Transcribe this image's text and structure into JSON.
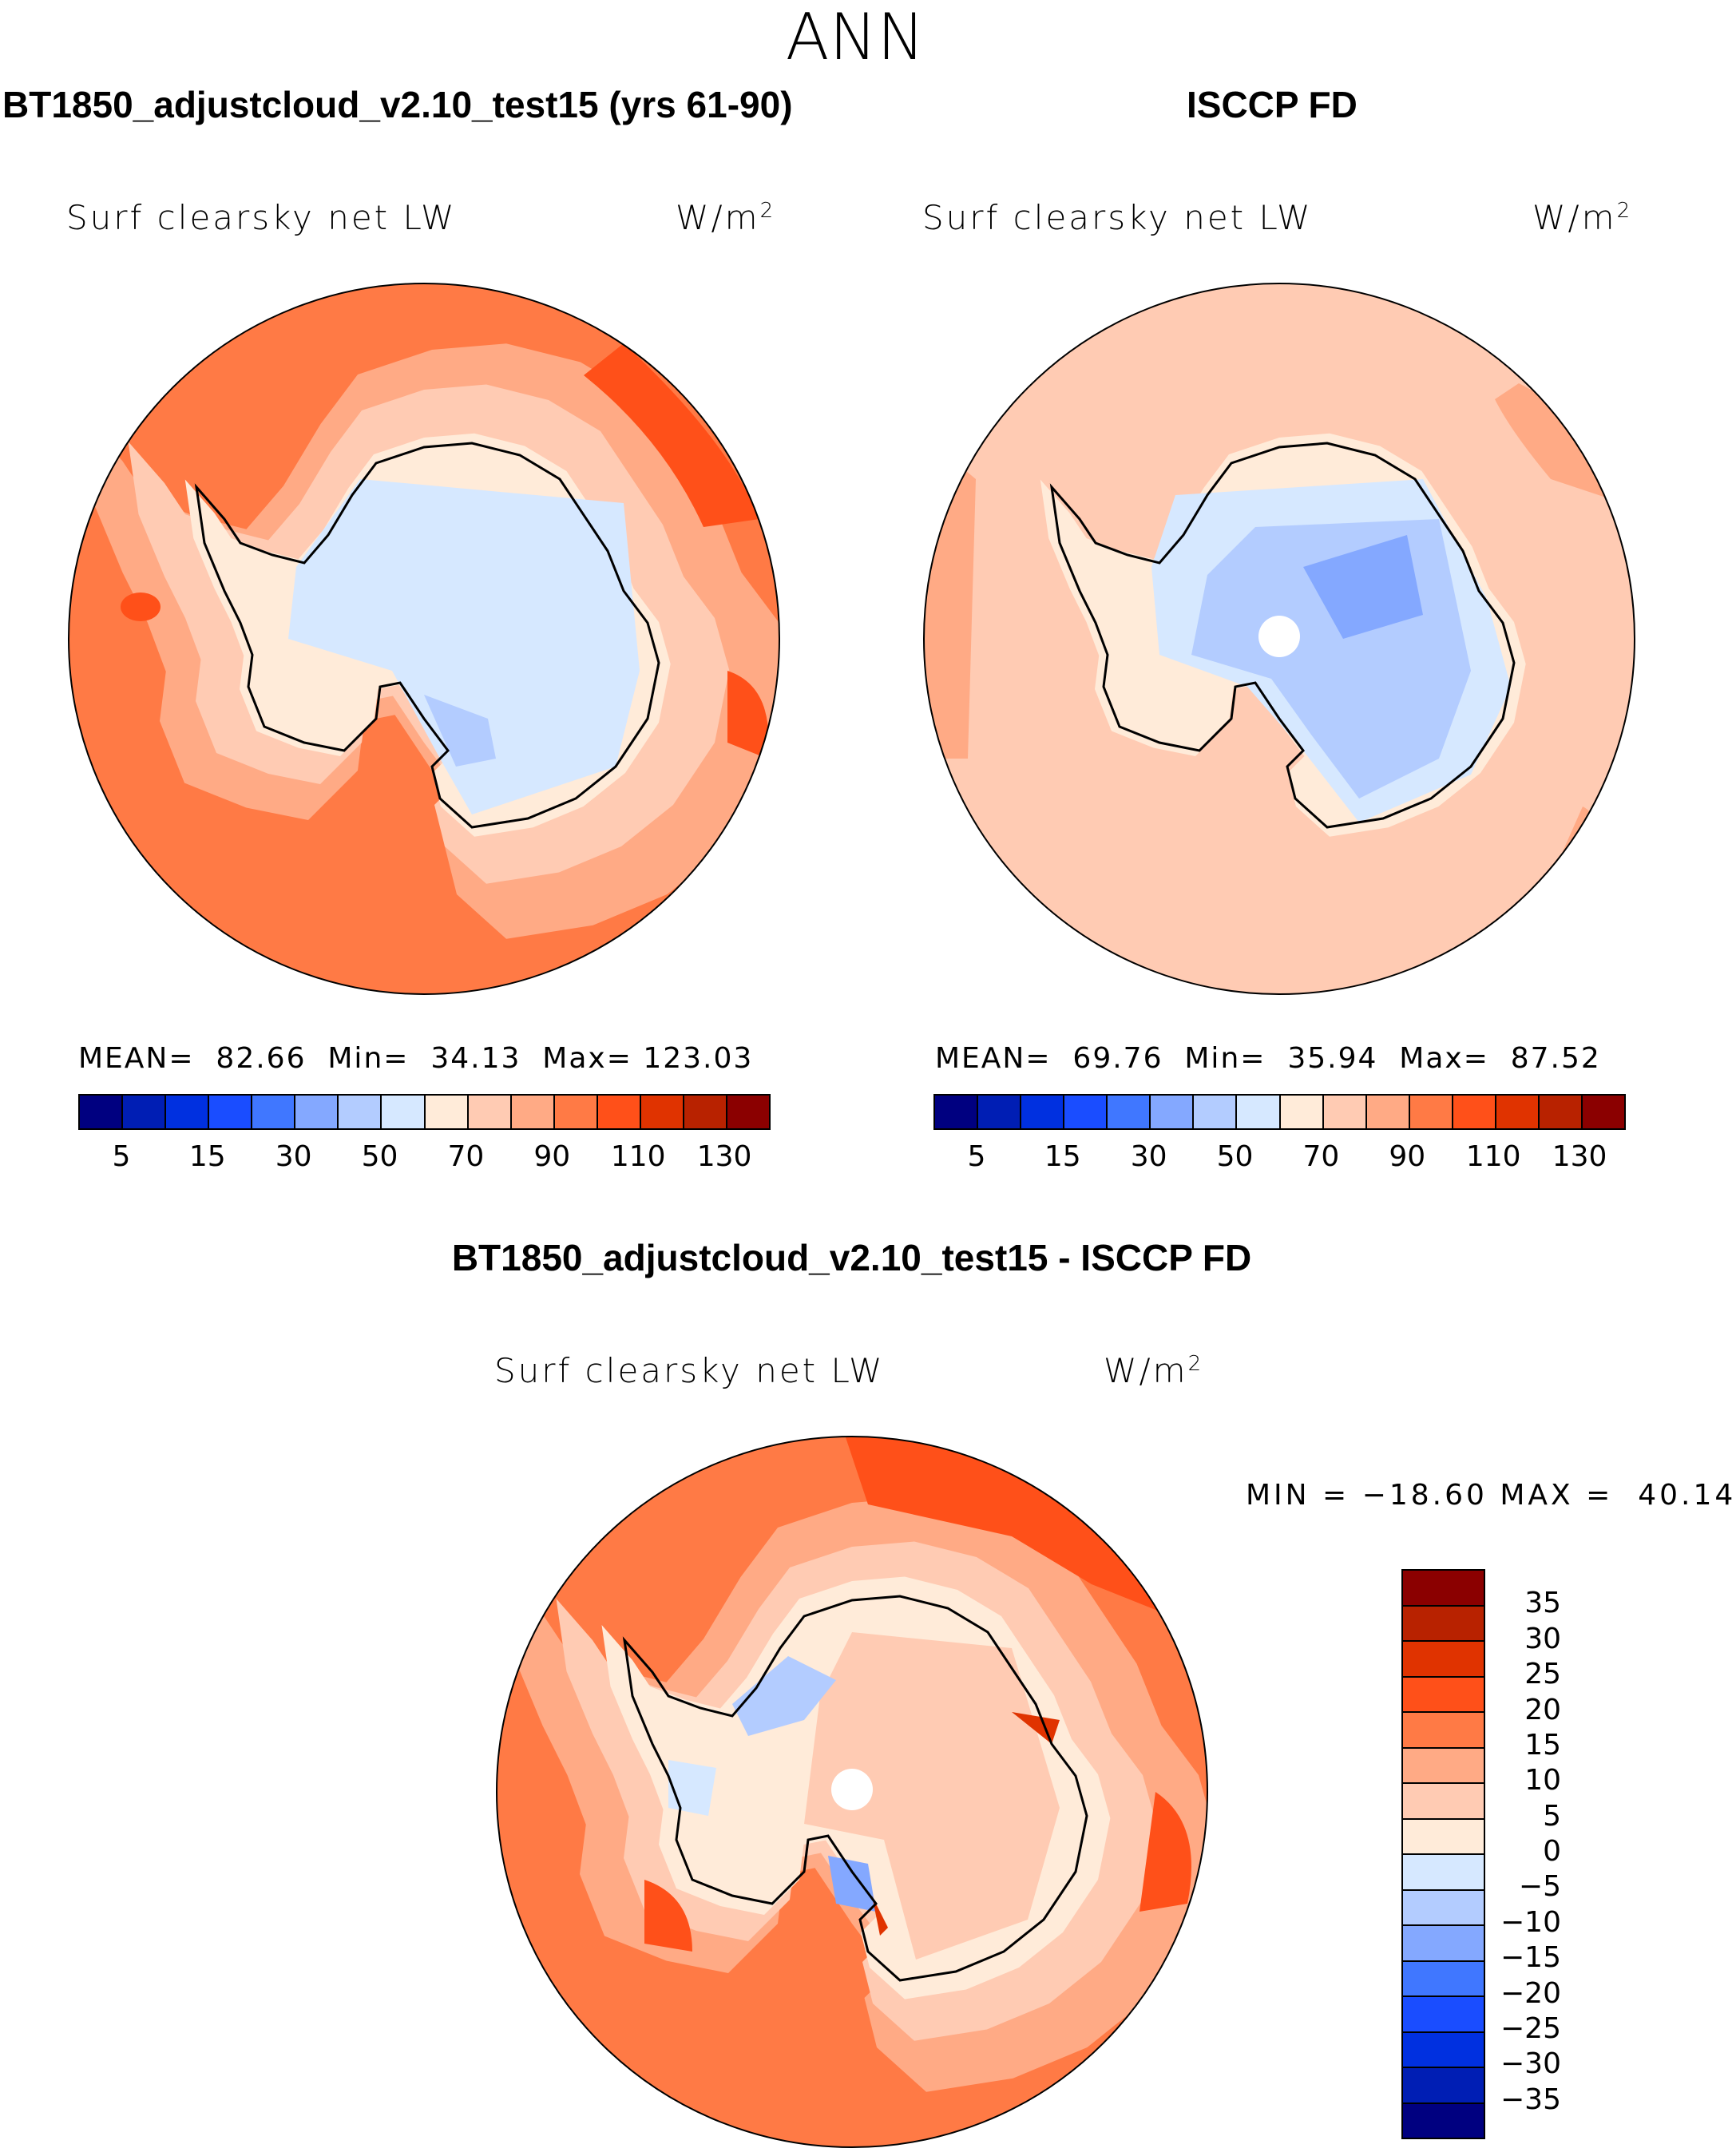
{
  "title": "ANN",
  "panels": [
    {
      "title": "BT1850_adjustcloud_v2.10_test15 (yrs 61-90)",
      "variable": "Surf clearsky net LW",
      "units": "W/m",
      "units_sup": "2",
      "mean_label": "MEAN=",
      "mean": "82.66",
      "min_label": "Min=",
      "min": "34.13",
      "max_label": "Max=",
      "max": "123.03"
    },
    {
      "title": "ISCCP FD",
      "variable": "Surf clearsky net LW",
      "units": "W/m",
      "units_sup": "2",
      "mean_label": "MEAN=",
      "mean": "69.76",
      "min_label": "Min=",
      "min": "35.94",
      "max_label": "Max=",
      "max": "87.52"
    },
    {
      "title": "BT1850_adjustcloud_v2.10_test15 - ISCCP FD",
      "variable": "Surf clearsky net LW",
      "units": "W/m",
      "units_sup": "2",
      "min_label": "MIN =",
      "min": "−18.60",
      "max_label": "MAX =",
      "max": "40.14"
    }
  ],
  "chart_data": [
    {
      "type": "heatmap",
      "projection": "south-polar-stereographic",
      "title": "BT1850_adjustcloud_v2.10_test15 (yrs 61-90)",
      "field": "Surf clearsky net LW",
      "units": "W/m2",
      "mean": 82.66,
      "min": 34.13,
      "max": 123.03,
      "colorbar_ticks": [
        "5",
        "15",
        "30",
        "50",
        "70",
        "90",
        "110",
        "130"
      ]
    },
    {
      "type": "heatmap",
      "projection": "south-polar-stereographic",
      "title": "ISCCP FD",
      "field": "Surf clearsky net LW",
      "units": "W/m2",
      "mean": 69.76,
      "min": 35.94,
      "max": 87.52,
      "colorbar_ticks": [
        "5",
        "15",
        "30",
        "50",
        "70",
        "90",
        "110",
        "130"
      ]
    },
    {
      "type": "heatmap",
      "projection": "south-polar-stereographic",
      "title": "BT1850_adjustcloud_v2.10_test15 - ISCCP FD",
      "field": "Surf clearsky net LW",
      "units": "W/m2",
      "min": -18.6,
      "max": 40.14,
      "colorbar_ticks": [
        "35",
        "30",
        "25",
        "20",
        "15",
        "10",
        "5",
        "0",
        "−5",
        "−10",
        "−15",
        "−20",
        "−25",
        "−30",
        "−35"
      ]
    }
  ],
  "colors": [
    "#000080",
    "#001eb4",
    "#0030e0",
    "#1a4dff",
    "#4077ff",
    "#84a8ff",
    "#b3ccff",
    "#d6e8ff",
    "#ffebd9",
    "#ffcbb3",
    "#ffaa85",
    "#ff7a45",
    "#ff5019",
    "#e03300",
    "#b82200",
    "#8b0000"
  ]
}
